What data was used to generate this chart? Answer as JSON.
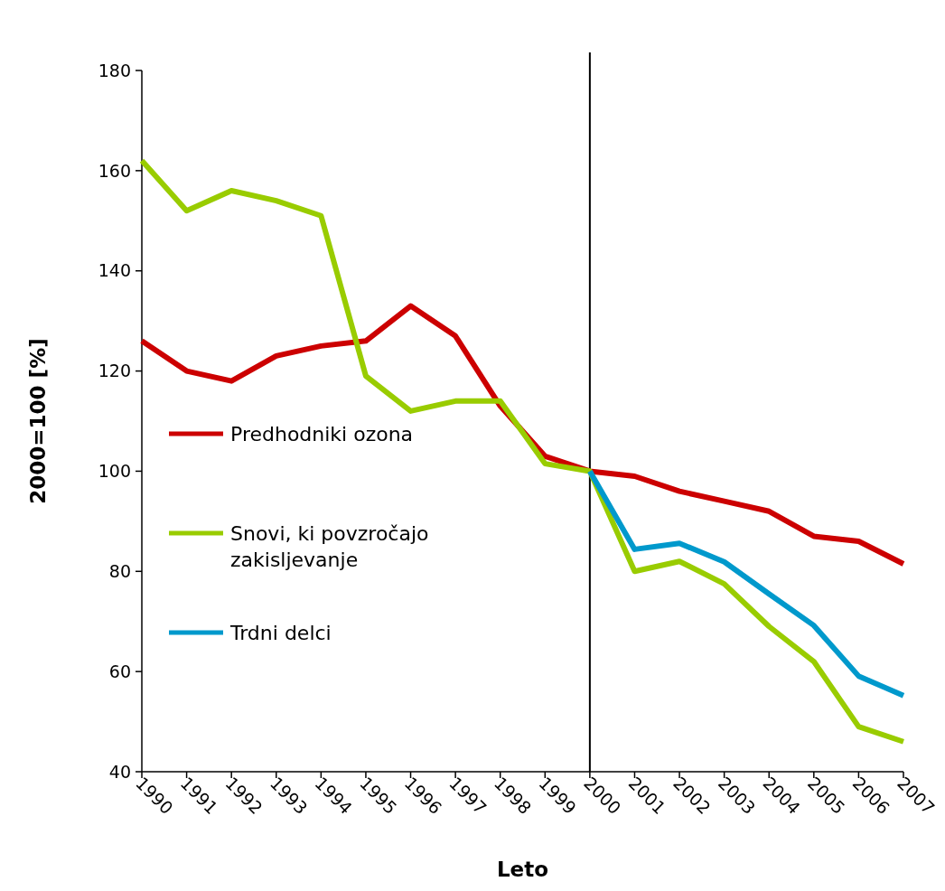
{
  "chart_data": {
    "type": "line",
    "xlabel": "Leto",
    "ylabel": "2000=100 [%]",
    "categories": [
      "1990",
      "1991",
      "1992",
      "1993",
      "1994",
      "1995",
      "1996",
      "1997",
      "1998",
      "1999",
      "2000",
      "2001",
      "2002",
      "2003",
      "2004",
      "2005",
      "2006",
      "2007"
    ],
    "series": [
      {
        "name": "Predhodniki ozona",
        "color": "#cc0000",
        "values": [
          126,
          120,
          118,
          123,
          125,
          126,
          133,
          127,
          113,
          103,
          100,
          99,
          96,
          94,
          92,
          87,
          86,
          81.5
        ]
      },
      {
        "name": "Snovi, ki povzročajo zakisljevanje",
        "color": "#99cc00",
        "values": [
          162,
          152,
          156,
          154,
          151,
          119,
          112,
          114,
          114,
          101.5,
          100,
          80,
          82,
          77.5,
          69,
          62,
          49,
          46
        ]
      },
      {
        "name": "Trdni delci",
        "color": "#0099cc",
        "values": [
          null,
          null,
          null,
          null,
          null,
          null,
          null,
          null,
          null,
          null,
          100,
          84.4,
          85.6,
          81.9,
          75.5,
          69.2,
          59.1,
          55.2
        ]
      }
    ],
    "ylim": [
      40,
      180
    ],
    "yticks": [
      40,
      60,
      80,
      100,
      120,
      140,
      160,
      180
    ],
    "ref_lines": [
      {
        "axis": "x",
        "value": "2000",
        "color": "#000000"
      }
    ],
    "legend": "left",
    "grid": false,
    "marker": "none",
    "line_style": "solid"
  }
}
